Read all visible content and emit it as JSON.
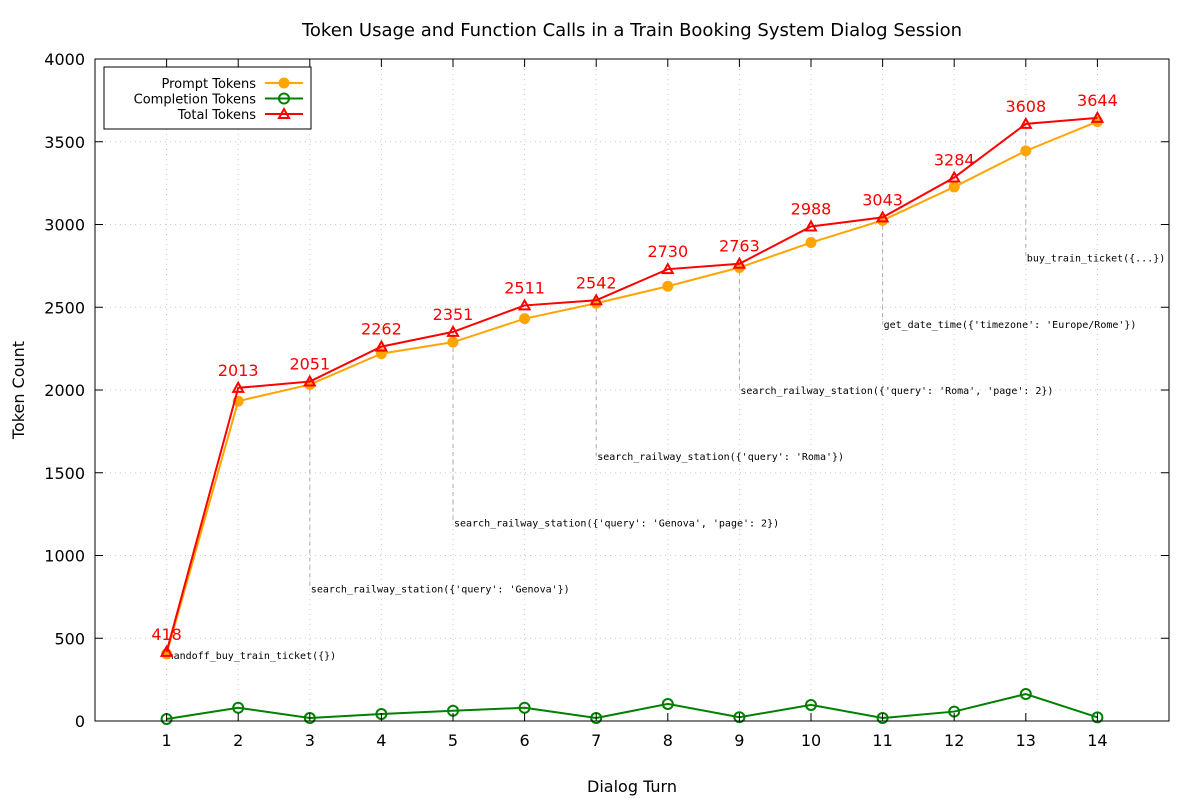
{
  "chart_data": {
    "type": "line",
    "title": "Token Usage and Function Calls in a Train Booking System Dialog Session",
    "xlabel": "Dialog Turn",
    "ylabel": "Token Count",
    "x": [
      1,
      2,
      3,
      4,
      5,
      6,
      7,
      8,
      9,
      10,
      11,
      12,
      13,
      14
    ],
    "xlim": [
      0,
      15
    ],
    "ylim": [
      0,
      4000
    ],
    "yticks": [
      0,
      500,
      1000,
      1500,
      2000,
      2500,
      3000,
      3500,
      4000
    ],
    "grid": true,
    "legend_position": "top-left",
    "series": [
      {
        "name": "Prompt Tokens",
        "color": "#ffa500",
        "marker": "filled-circle",
        "values": [
          406,
          1933,
          2033,
          2220,
          2289,
          2431,
          2524,
          2627,
          2740,
          2891,
          3025,
          3227,
          3445,
          3622
        ]
      },
      {
        "name": "Completion Tokens",
        "color": "#008000",
        "marker": "open-circle",
        "values": [
          12,
          80,
          18,
          42,
          62,
          80,
          18,
          103,
          23,
          97,
          18,
          57,
          163,
          22
        ]
      },
      {
        "name": "Total Tokens",
        "color": "#ff0000",
        "marker": "open-triangle",
        "values": [
          418,
          2013,
          2051,
          2262,
          2351,
          2511,
          2542,
          2730,
          2763,
          2988,
          3043,
          3284,
          3608,
          3644
        ]
      }
    ],
    "data_labels": [
      "418",
      "2013",
      "2051",
      "2262",
      "2351",
      "2511",
      "2542",
      "2730",
      "2763",
      "2988",
      "3043",
      "3284",
      "3608",
      "3644"
    ],
    "annotations": [
      {
        "x": 1,
        "y": 400,
        "text": "handoff_buy_train_ticket({})"
      },
      {
        "x": 3,
        "y": 800,
        "text": "search_railway_station({'query': 'Genova'})"
      },
      {
        "x": 5,
        "y": 1200,
        "text": "search_railway_station({'query': 'Genova', 'page': 2})"
      },
      {
        "x": 7,
        "y": 1600,
        "text": "search_railway_station({'query': 'Roma'})"
      },
      {
        "x": 9,
        "y": 2000,
        "text": "search_railway_station({'query': 'Roma', 'page': 2})"
      },
      {
        "x": 11,
        "y": 2400,
        "text": "get_date_time({'timezone': 'Europe/Rome'})"
      },
      {
        "x": 13,
        "y": 2800,
        "text": "buy_train_ticket({...})"
      }
    ]
  }
}
